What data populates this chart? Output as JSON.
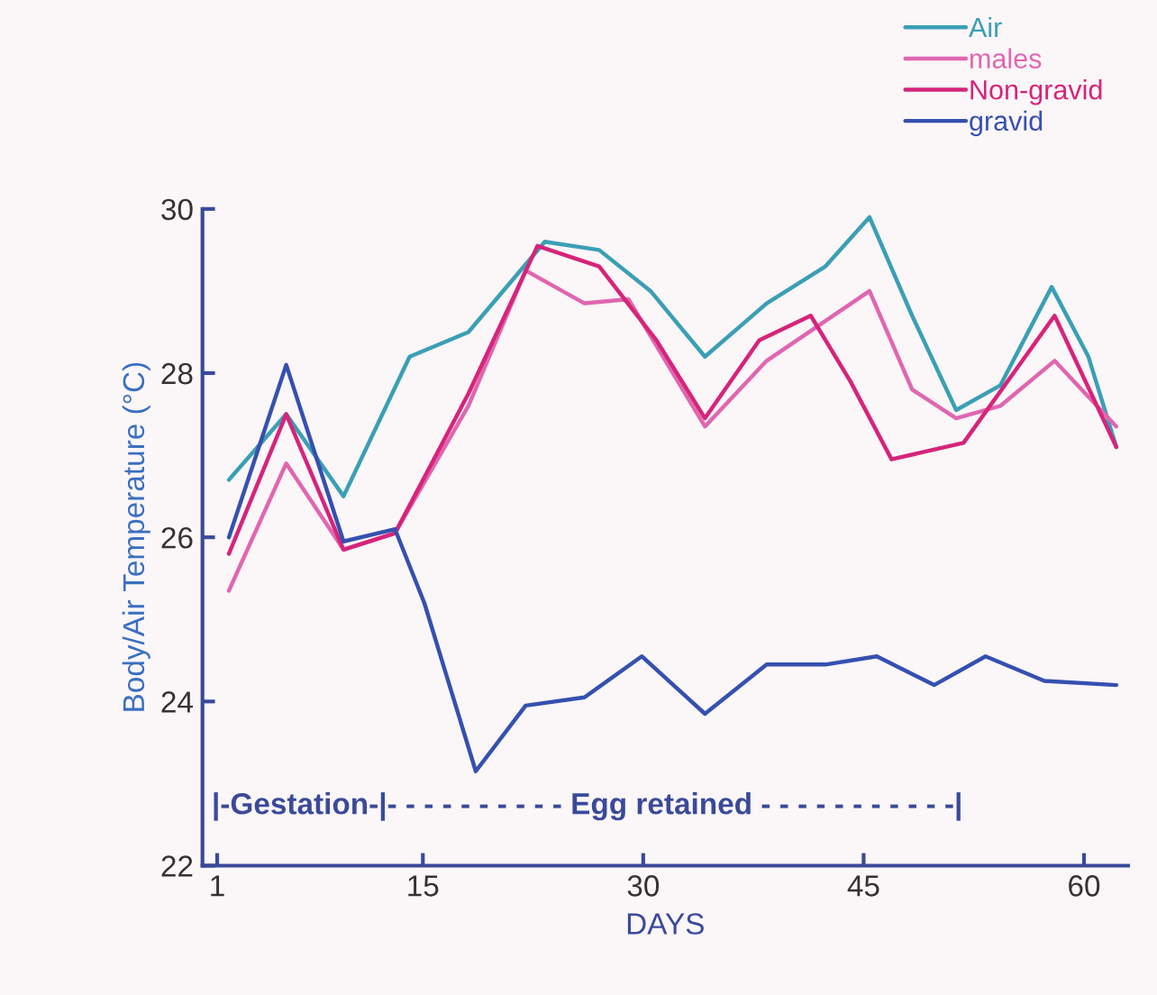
{
  "chart_data": {
    "type": "line",
    "xlabel": "DAYS",
    "ylabel": "Body/Air Temperature (°C)",
    "xlim": [
      0,
      63
    ],
    "xticks": [
      1,
      15,
      30,
      45,
      60
    ],
    "ylim": [
      22,
      30
    ],
    "yticks": [
      22,
      24,
      26,
      28,
      30
    ],
    "grid": false,
    "legend": "top right",
    "marker": "none",
    "line_style": "solid",
    "annotations": [
      "|-Gestation-|- - - - - - - - - - Egg retained - - - - - - - - - - -|"
    ],
    "series": [
      {
        "name": "Air",
        "color": "#3a9fb5",
        "x": [
          1.8,
          5.7,
          9.6,
          14.1,
          18.1,
          23.3,
          27.0,
          30.5,
          34.2,
          38.4,
          42.4,
          45.4,
          48.3,
          51.3,
          54.3,
          57.8,
          60.3,
          62.2
        ],
        "values": [
          26.7,
          27.5,
          26.5,
          28.2,
          28.5,
          29.6,
          29.5,
          29.0,
          28.2,
          28.85,
          29.3,
          29.9,
          28.7,
          27.55,
          27.85,
          29.05,
          28.2,
          27.1
        ]
      },
      {
        "name": "males",
        "color": "#e066b0",
        "x": [
          1.8,
          5.7,
          9.6,
          13.1,
          18.1,
          22.0,
          26.0,
          29.0,
          34.2,
          38.4,
          45.4,
          48.3,
          51.3,
          54.3,
          58.0,
          62.2
        ],
        "values": [
          25.35,
          26.9,
          25.85,
          26.05,
          27.6,
          29.25,
          28.85,
          28.9,
          27.35,
          28.15,
          29.0,
          27.8,
          27.45,
          27.6,
          28.15,
          27.35
        ]
      },
      {
        "name": "Non-gravid",
        "color": "#d6247a",
        "x": [
          1.8,
          5.7,
          9.6,
          13.1,
          18.1,
          22.8,
          27.0,
          30.9,
          34.2,
          37.9,
          41.4,
          44.1,
          46.9,
          51.8,
          58.0,
          62.2
        ],
        "values": [
          25.8,
          27.5,
          25.85,
          26.05,
          27.75,
          29.55,
          29.3,
          28.4,
          27.45,
          28.4,
          28.7,
          27.9,
          26.95,
          27.15,
          28.7,
          27.1
        ]
      },
      {
        "name": "gravid",
        "color": "#3550b0",
        "x": [
          1.8,
          5.7,
          9.6,
          13.1,
          15.1,
          18.6,
          22.0,
          26.0,
          29.9,
          34.2,
          38.4,
          42.4,
          45.9,
          49.8,
          53.3,
          57.3,
          62.2
        ],
        "values": [
          26.0,
          28.1,
          25.95,
          26.1,
          25.2,
          23.15,
          23.95,
          24.05,
          24.55,
          23.85,
          24.45,
          24.45,
          24.55,
          24.2,
          24.55,
          24.25,
          24.2
        ]
      }
    ]
  }
}
